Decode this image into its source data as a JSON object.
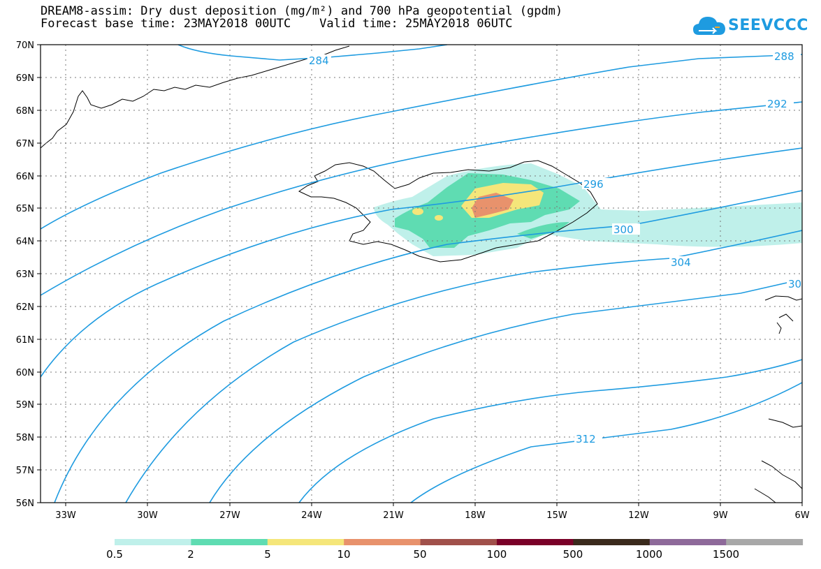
{
  "header": {
    "title_line1": "DREAM8-assim: Dry dust deposition (mg/m²) and 700 hPa geopotential (gpdm)",
    "title_line2": "Forecast base time: 23MAY2018 00UTC    Valid time: 25MAY2018 06UTC"
  },
  "logo": {
    "text": "SEEVCCC",
    "icon": "cloud-logo-icon"
  },
  "map": {
    "lat_labels": [
      "70N",
      "69N",
      "68N",
      "67N",
      "66N",
      "65N",
      "64N",
      "63N",
      "62N",
      "61N",
      "60N",
      "59N",
      "58N",
      "57N",
      "56N"
    ],
    "lon_labels": [
      "33W",
      "30W",
      "27W",
      "24W",
      "21W",
      "18W",
      "15W",
      "12W",
      "9W",
      "6W"
    ],
    "contour_labels": [
      "284",
      "288",
      "292",
      "296",
      "300",
      "304",
      "30",
      "312"
    ],
    "contour_color": "#1e9be0"
  },
  "legend": {
    "colors": [
      "#bff0ea",
      "#5fdcb2",
      "#f5e67a",
      "#e8926c",
      "#a0504a",
      "#7a0028",
      "#3a2a1c",
      "#8e6a9a",
      "#a8a8a8"
    ],
    "labels": [
      "0.5",
      "2",
      "5",
      "10",
      "50",
      "100",
      "500",
      "1000",
      "1500"
    ]
  }
}
